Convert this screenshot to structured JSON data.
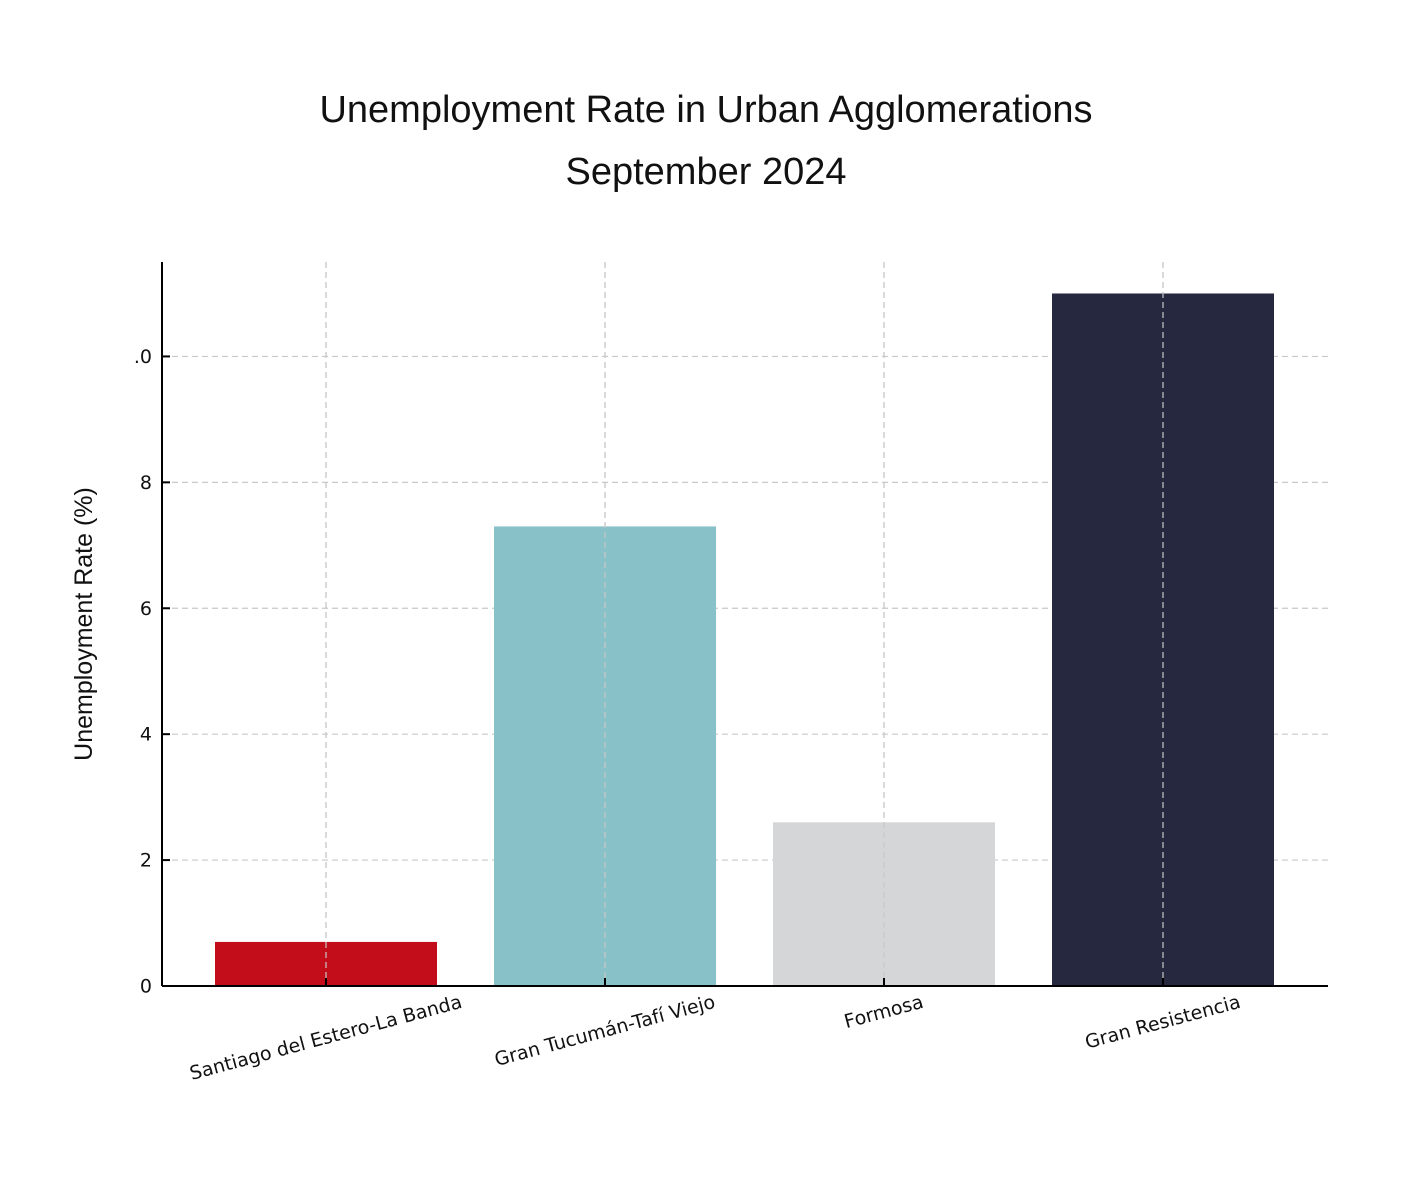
{
  "chart_data": {
    "type": "bar",
    "title": "Unemployment Rate in Urban Agglomerations",
    "subtitle": "September 2024",
    "y_label": "Unemployment Rate (%)",
    "categories": [
      "Santiago del Estero-La Banda",
      "Gran Tucumán-Tafí Viejo",
      "Formosa",
      "Gran Resistencia"
    ],
    "values": [
      0.7,
      7.3,
      2.6,
      11.0
    ],
    "colors": [
      "#c30d1a",
      "#88c1c8",
      "#d5d6d8",
      "#262840"
    ],
    "ylim": [
      0,
      11.5
    ],
    "yticks": [
      0,
      2,
      4,
      6,
      8,
      {
        "value": 10,
        "label": ".0"
      }
    ],
    "grid": true
  }
}
